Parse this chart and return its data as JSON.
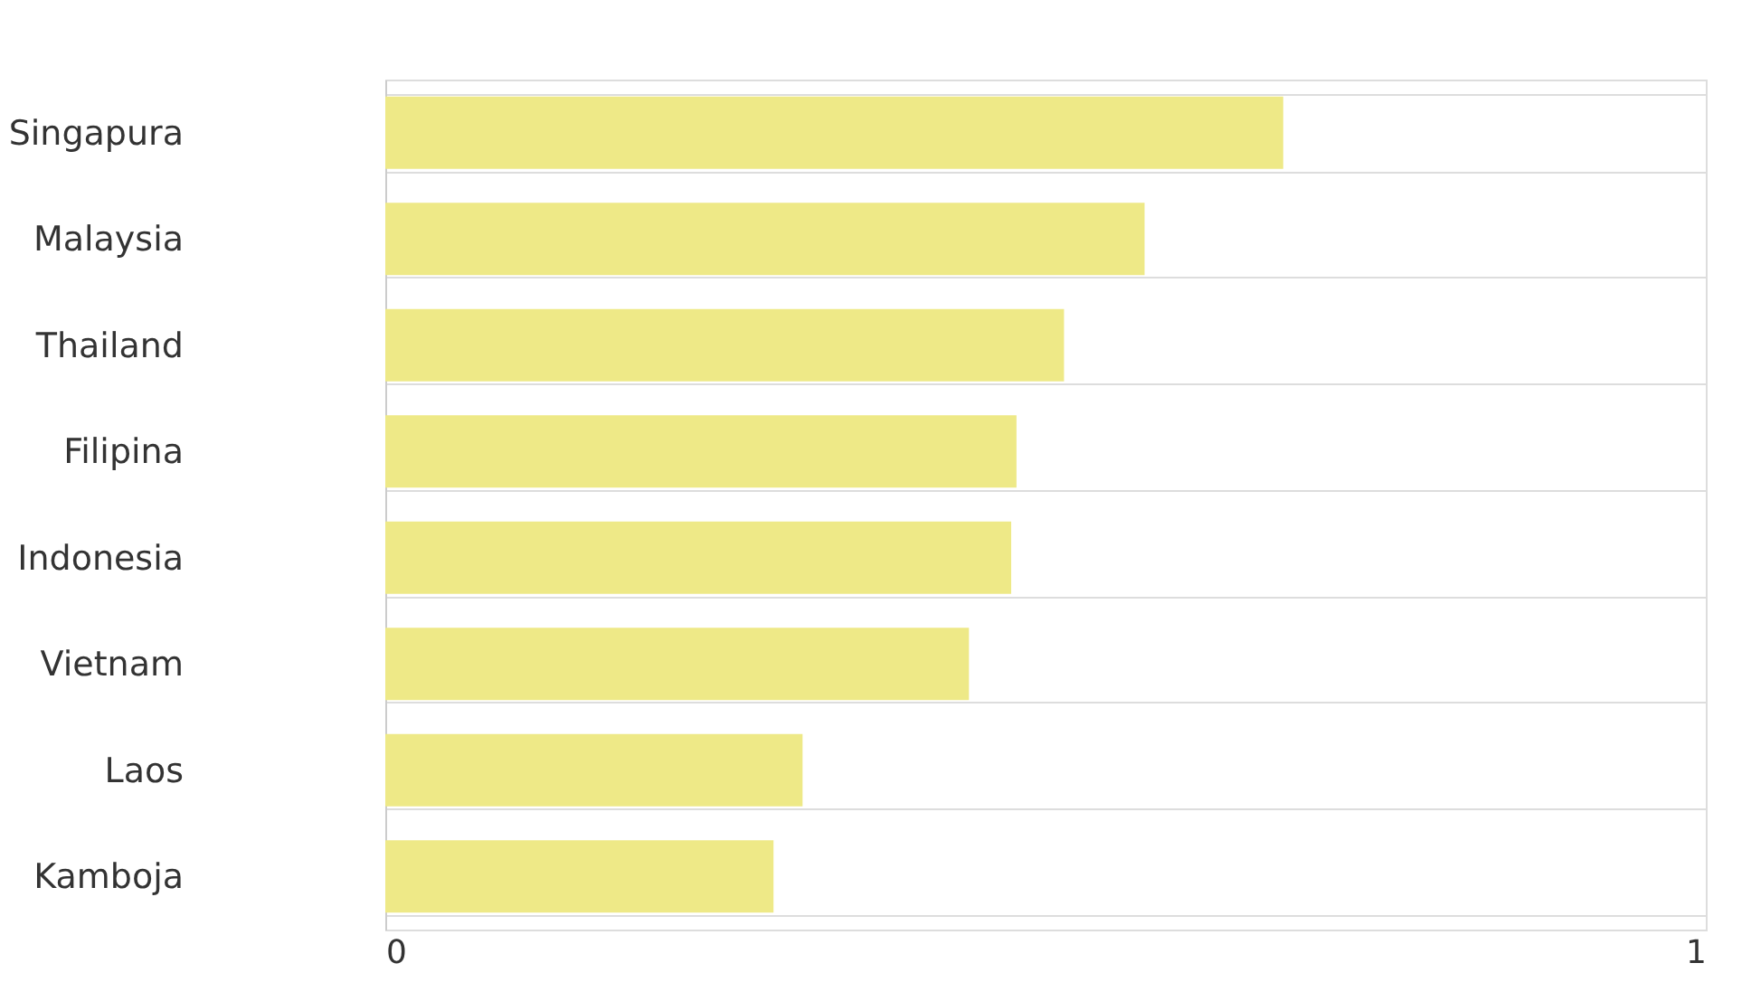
{
  "chart_data": {
    "type": "bar",
    "orientation": "horizontal",
    "categories": [
      "Singapura",
      "Malaysia",
      "Thailand",
      "Filipina",
      "Indonesia",
      "Vietnam",
      "Laos",
      "Kamboja"
    ],
    "values": [
      0.68,
      0.575,
      0.514,
      0.478,
      0.474,
      0.442,
      0.316,
      0.294
    ],
    "color": "#eee987",
    "xlim": [
      0,
      1
    ],
    "xticks": [
      0,
      1
    ],
    "grid": true
  }
}
